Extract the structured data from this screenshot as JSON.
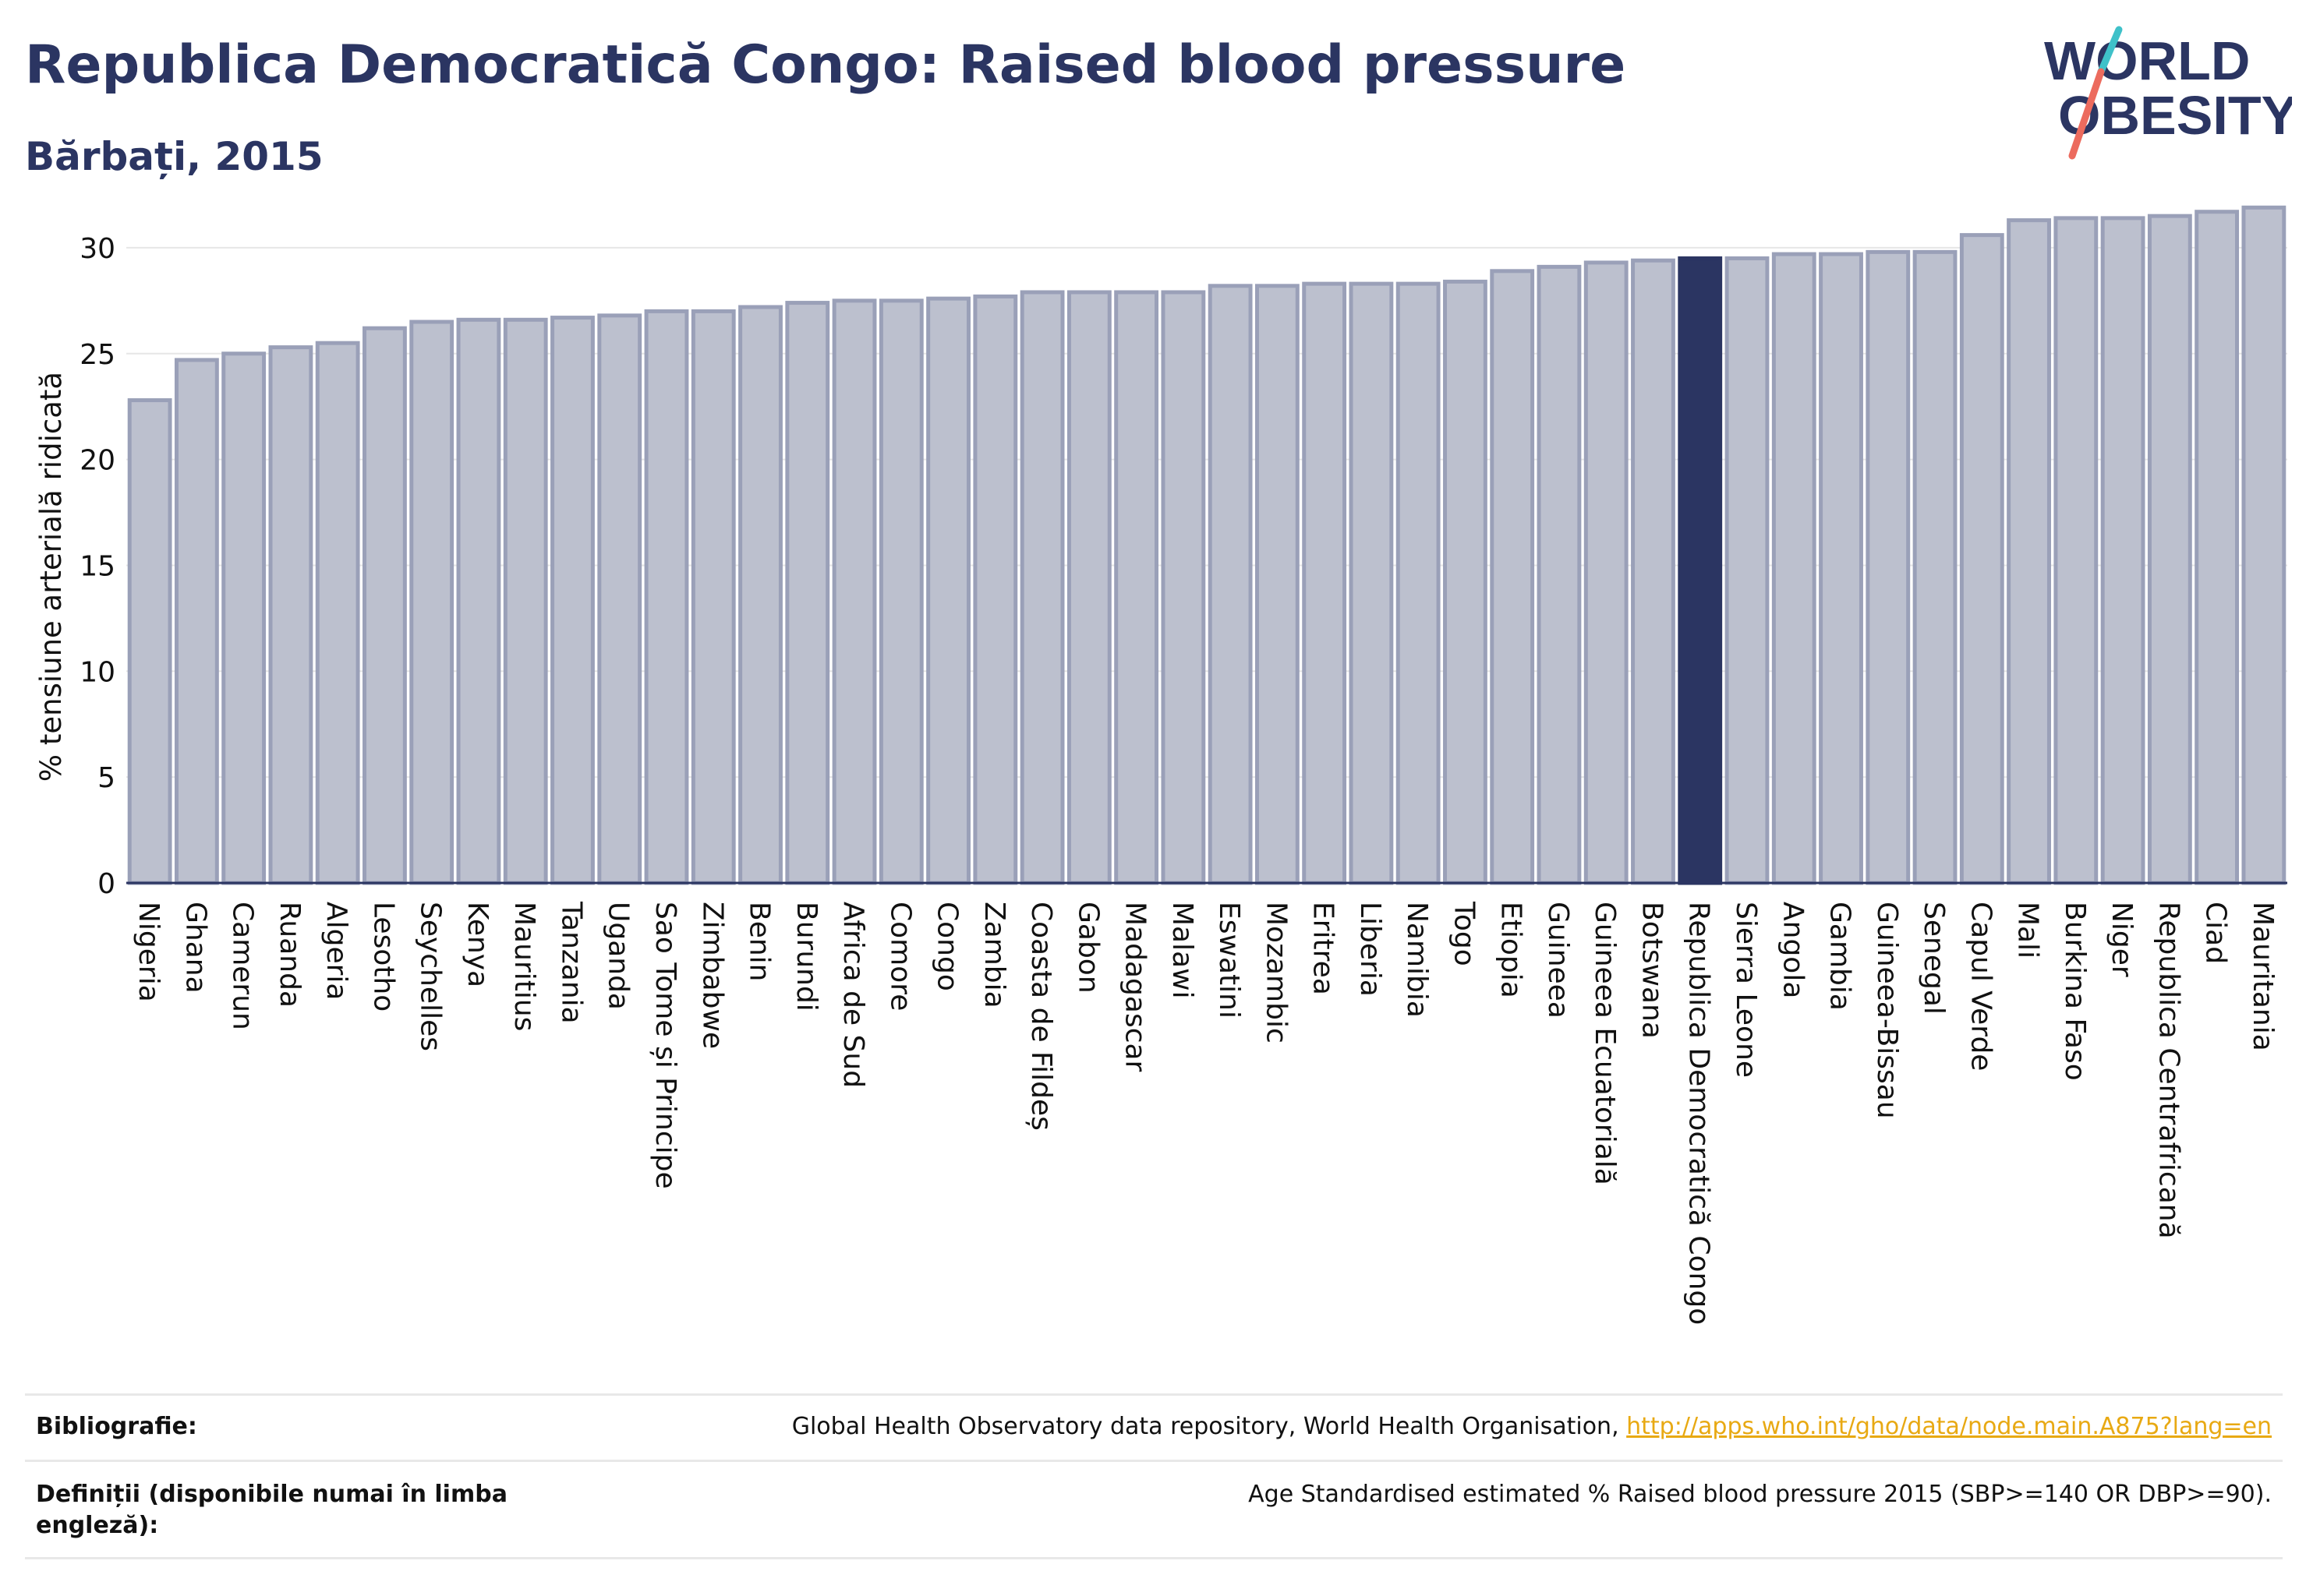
{
  "header": {
    "title": "Republica Democratică Congo: Raised blood pressure",
    "subtitle": "Bărbați, 2015"
  },
  "logo": {
    "line1": "WORLD",
    "line2": "OBESITY",
    "colors": {
      "text": "#2b3562",
      "slash_teal": "#3fc1c9",
      "slash_coral": "#ec6b5e"
    }
  },
  "colors": {
    "bar": "#bcc0ce",
    "bar_stroke": "#9aa0b8",
    "highlight": "#2b3562",
    "grid": "#e6e6e6",
    "axis": "#2b3562",
    "link": "#e8a913"
  },
  "chart_data": {
    "type": "bar",
    "ylabel": "% tensiune arterială ridicată",
    "ylim": [
      0,
      32.5
    ],
    "yticks": [
      0,
      5,
      10,
      15,
      20,
      25,
      30
    ],
    "grid": true,
    "highlight": "Republica Democratică Congo",
    "categories": [
      "Nigeria",
      "Ghana",
      "Camerun",
      "Ruanda",
      "Algeria",
      "Lesotho",
      "Seychelles",
      "Kenya",
      "Mauritius",
      "Tanzania",
      "Uganda",
      "Sao Tome și Principe",
      "Zimbabwe",
      "Benin",
      "Burundi",
      "Africa de Sud",
      "Comore",
      "Congo",
      "Zambia",
      "Coasta de Fildeș",
      "Gabon",
      "Madagascar",
      "Malawi",
      "Eswatini",
      "Mozambic",
      "Eritrea",
      "Liberia",
      "Namibia",
      "Togo",
      "Etiopia",
      "Guineea",
      "Guineea Ecuatorială",
      "Botswana",
      "Republica Democratică Congo",
      "Sierra Leone",
      "Angola",
      "Gambia",
      "Guineea-Bissau",
      "Senegal",
      "Capul Verde",
      "Mali",
      "Burkina Faso",
      "Niger",
      "Republica Centrafricană",
      "Ciad",
      "Mauritania"
    ],
    "values": [
      22.8,
      24.7,
      25.0,
      25.3,
      25.5,
      26.2,
      26.5,
      26.6,
      26.6,
      26.7,
      26.8,
      27.0,
      27.0,
      27.2,
      27.4,
      27.5,
      27.5,
      27.6,
      27.7,
      27.9,
      27.9,
      27.9,
      27.9,
      28.2,
      28.2,
      28.3,
      28.3,
      28.3,
      28.4,
      28.9,
      29.1,
      29.3,
      29.4,
      29.5,
      29.5,
      29.7,
      29.7,
      29.8,
      29.8,
      30.6,
      31.3,
      31.4,
      31.4,
      31.5,
      31.7,
      31.9
    ]
  },
  "footer": {
    "bibliography_label": "Bibliografie:",
    "bibliography_text": "Global Health Observatory data repository, World Health Organisation, ",
    "bibliography_link": "http://apps.who.int/gho/data/node.main.A875?lang=en",
    "definitions_label": "Definiții (disponibile numai în limba engleză):",
    "definitions_text": "Age Standardised estimated % Raised blood pressure 2015 (SBP>=140 OR DBP>=90)."
  }
}
